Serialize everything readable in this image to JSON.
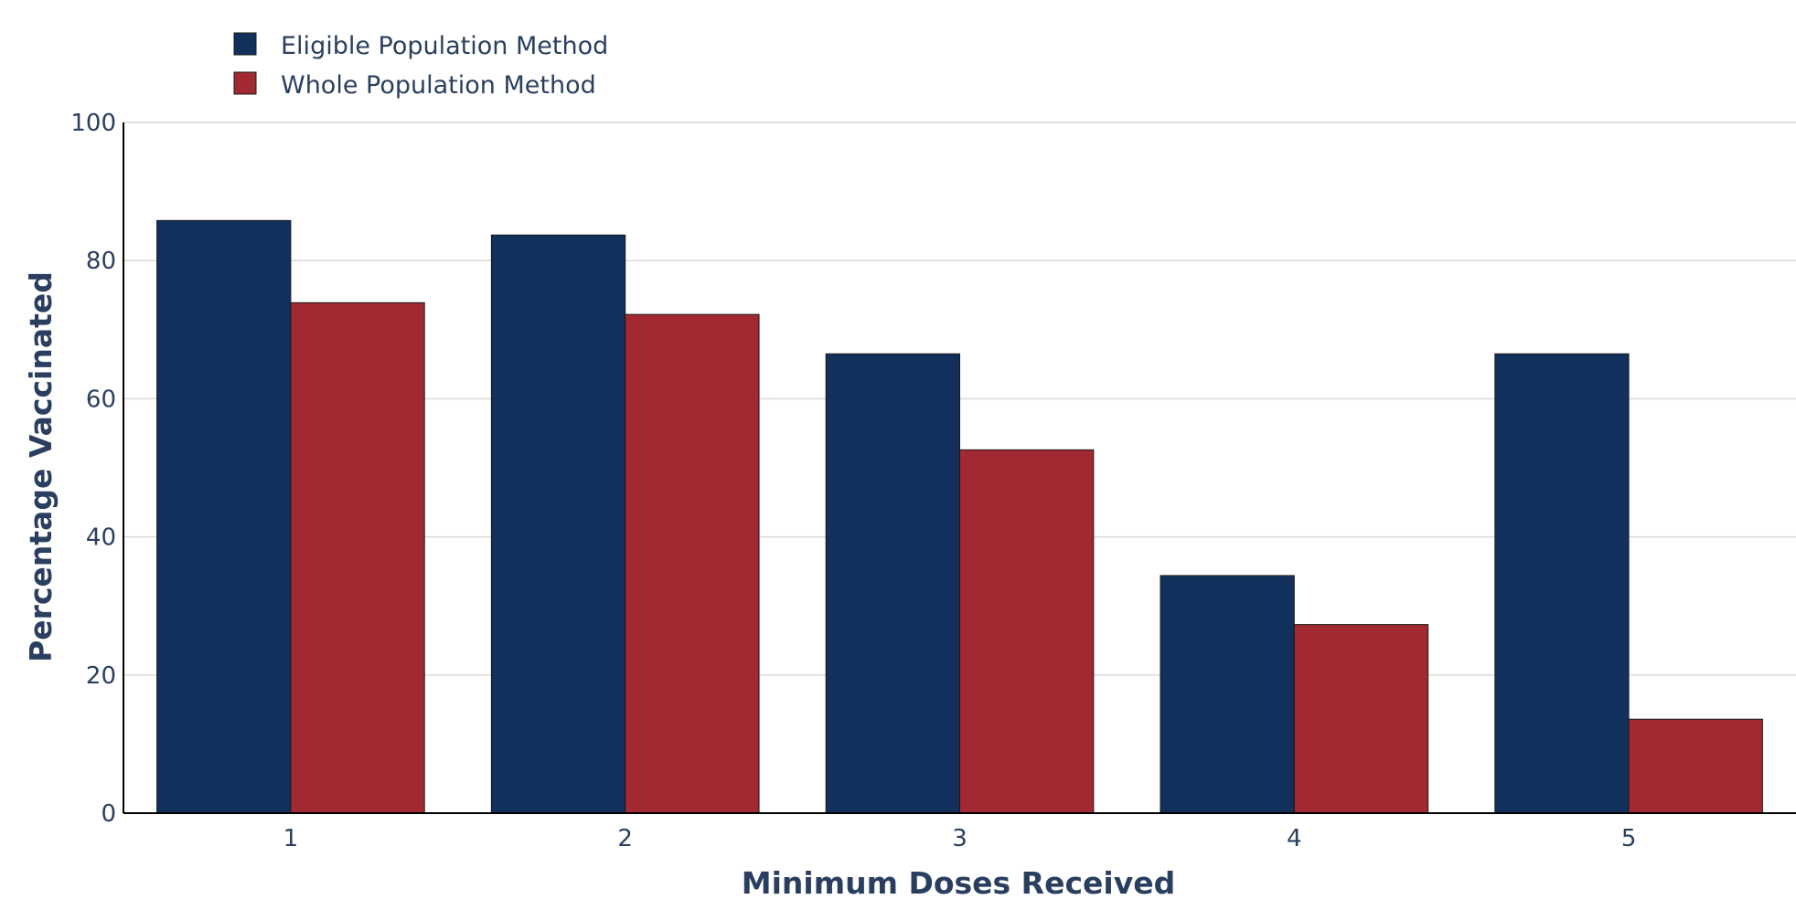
{
  "chart_data": {
    "type": "bar",
    "categories": [
      "1",
      "2",
      "3",
      "4",
      "5"
    ],
    "series": [
      {
        "name": "Eligible Population Method",
        "color": "#12305c",
        "values": [
          85.8,
          83.7,
          66.5,
          34.4,
          66.5
        ]
      },
      {
        "name": "Whole Population Method",
        "color": "#a22932",
        "values": [
          73.9,
          72.2,
          52.6,
          27.3,
          13.6
        ]
      }
    ],
    "xlabel": "Minimum Doses Received",
    "ylabel": "Percentage Vaccinated",
    "ylim": [
      0,
      100
    ],
    "yticks": [
      "0",
      "20",
      "40",
      "60",
      "80",
      "100"
    ],
    "grid": true,
    "legend_position": "top-left"
  }
}
